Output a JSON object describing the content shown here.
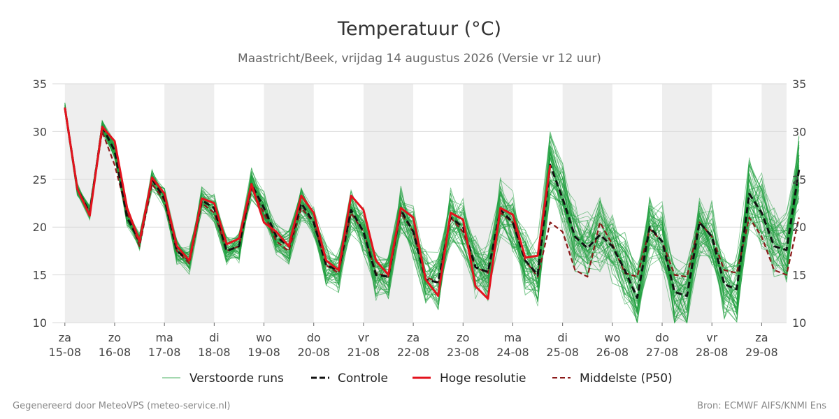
{
  "chart_data": {
    "type": "line",
    "title": "Temperatuur (°C)",
    "subtitle": "Maastricht/Beek, vrijdag 14 augustus 2026 (Versie vr 12 uur)",
    "ylim": [
      10,
      35
    ],
    "yticks": [
      10,
      15,
      20,
      25,
      30,
      35
    ],
    "x_unit": "day offset from 15-08 00h (6-hourly steps)",
    "xlim": [
      -0.25,
      14.5
    ],
    "days": [
      {
        "weekday": "za",
        "date": "15-08"
      },
      {
        "weekday": "zo",
        "date": "16-08"
      },
      {
        "weekday": "ma",
        "date": "17-08"
      },
      {
        "weekday": "di",
        "date": "18-08"
      },
      {
        "weekday": "wo",
        "date": "19-08"
      },
      {
        "weekday": "do",
        "date": "20-08"
      },
      {
        "weekday": "vr",
        "date": "21-08"
      },
      {
        "weekday": "za",
        "date": "22-08"
      },
      {
        "weekday": "zo",
        "date": "23-08"
      },
      {
        "weekday": "ma",
        "date": "24-08"
      },
      {
        "weekday": "di",
        "date": "25-08"
      },
      {
        "weekday": "wo",
        "date": "26-08"
      },
      {
        "weekday": "do",
        "date": "27-08"
      },
      {
        "weekday": "vr",
        "date": "28-08"
      },
      {
        "weekday": "za",
        "date": "29-08"
      }
    ],
    "grid": true,
    "legend_position": "bottom",
    "series": [
      {
        "name": "Controle",
        "color": "#111111",
        "style": "dashed",
        "values": [
          32.5,
          24.0,
          21.5,
          30.5,
          28.0,
          21.0,
          18.5,
          25.0,
          23.0,
          17.5,
          16.5,
          22.8,
          22.0,
          17.5,
          18.0,
          24.5,
          22.0,
          19.0,
          18.0,
          22.5,
          20.5,
          16.0,
          15.5,
          21.8,
          19.5,
          15.0,
          14.8,
          21.8,
          19.5,
          14.5,
          14.2,
          21.0,
          20.0,
          15.8,
          15.3,
          21.8,
          20.5,
          16.5,
          15.0,
          26.5,
          23.0,
          19.0,
          17.8,
          19.2,
          18.0,
          15.5,
          12.6,
          20.0,
          18.5,
          13.2,
          12.8,
          20.5,
          19.0,
          14.0,
          13.5,
          23.5,
          21.5,
          18.0,
          17.6,
          26.0
        ]
      },
      {
        "name": "Hoge resolutie",
        "color": "#e3121d",
        "style": "solid",
        "values": [
          32.5,
          24.0,
          21.2,
          30.5,
          29.0,
          22.0,
          18.5,
          25.2,
          23.5,
          18.0,
          16.5,
          23.0,
          22.5,
          18.2,
          18.8,
          24.5,
          20.5,
          19.5,
          18.0,
          23.3,
          21.5,
          16.5,
          15.5,
          23.3,
          21.8,
          16.5,
          15.0,
          22.0,
          21.0,
          14.5,
          12.8,
          21.5,
          20.8,
          13.8,
          12.5,
          22.0,
          21.3,
          16.8,
          17.0,
          26.5
        ]
      },
      {
        "name": "Middelste (P50)",
        "color": "#8b1a1a",
        "style": "dashed",
        "values": [
          32.5,
          24.0,
          21.5,
          30.0,
          26.5,
          21.5,
          18.0,
          24.5,
          22.8,
          17.5,
          16.2,
          22.5,
          21.5,
          17.5,
          18.0,
          24.0,
          21.5,
          18.5,
          17.5,
          22.0,
          20.5,
          16.0,
          15.2,
          21.5,
          19.5,
          15.2,
          14.8,
          21.5,
          19.5,
          14.8,
          14.2,
          21.0,
          19.5,
          15.8,
          15.2,
          21.5,
          20.5,
          16.5,
          14.8,
          20.5,
          19.5,
          15.5,
          14.8,
          20.5,
          18.2,
          15.2,
          14.8,
          19.8,
          18.5,
          15.0,
          14.8,
          20.5,
          19.0,
          15.5,
          15.2,
          21.0,
          19.0,
          15.5,
          15.0,
          21.0
        ]
      },
      {
        "name": "Verstoorde runs",
        "color": "#1e9e3c",
        "style": "thin",
        "members": 50
      }
    ]
  },
  "legend": {
    "items": [
      {
        "label": "Verstoorde runs"
      },
      {
        "label": "Controle"
      },
      {
        "label": "Hoge resolutie"
      },
      {
        "label": "Middelste (P50)"
      }
    ]
  },
  "footer": {
    "left": "Gegenereerd door MeteoVPS (meteo-service.nl)",
    "right": "Bron: ECMWF AIFS/KNMI Ens"
  }
}
